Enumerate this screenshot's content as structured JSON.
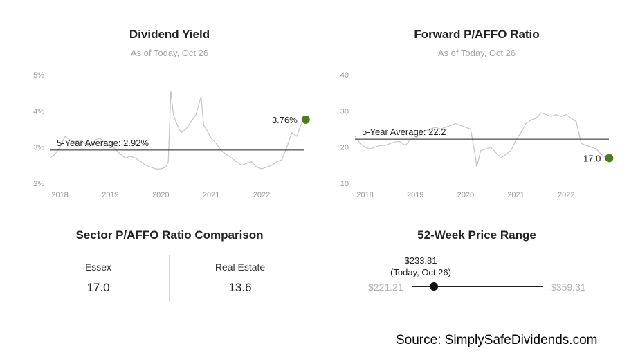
{
  "chart_data": [
    {
      "type": "line",
      "title": "Dividend Yield",
      "subtitle": "As of Today, Oct 26",
      "y_ticks": [
        "5%",
        "4%",
        "3%",
        "2%"
      ],
      "y_tick_values": [
        5,
        4,
        3,
        2
      ],
      "ylim": [
        2,
        5
      ],
      "x_ticks": [
        "2018",
        "2019",
        "2020",
        "2021",
        "2022"
      ],
      "x_tick_values": [
        2018,
        2019,
        2020,
        2021,
        2022
      ],
      "xlim": [
        2017.8,
        2022.85
      ],
      "average": {
        "label": "5-Year Average: 2.92%",
        "value": 2.92
      },
      "latest": {
        "label": "3.76%",
        "value": 3.76
      },
      "series": [
        {
          "x": [
            2017.8,
            2017.9,
            2018.0,
            2018.1,
            2018.2,
            2018.3,
            2018.4,
            2018.5,
            2018.6,
            2018.7,
            2018.8,
            2018.9,
            2019.0,
            2019.1,
            2019.2,
            2019.3,
            2019.4,
            2019.5,
            2019.6,
            2019.7,
            2019.8,
            2019.9,
            2020.0,
            2020.1,
            2020.15,
            2020.2,
            2020.25,
            2020.3,
            2020.4,
            2020.5,
            2020.6,
            2020.7,
            2020.8,
            2020.85,
            2020.9,
            2021.0,
            2021.1,
            2021.2,
            2021.3,
            2021.4,
            2021.5,
            2021.6,
            2021.7,
            2021.8,
            2021.9,
            2022.0,
            2022.1,
            2022.2,
            2022.3,
            2022.4,
            2022.5,
            2022.6,
            2022.7,
            2022.75,
            2022.82
          ],
          "y": [
            2.7,
            2.8,
            3.0,
            3.3,
            3.2,
            3.15,
            3.2,
            3.1,
            3.0,
            3.2,
            3.25,
            3.1,
            3.05,
            2.95,
            2.8,
            2.7,
            2.75,
            2.7,
            2.6,
            2.5,
            2.45,
            2.4,
            2.4,
            2.45,
            2.6,
            4.55,
            3.9,
            3.7,
            3.4,
            3.5,
            3.7,
            3.9,
            4.4,
            3.6,
            3.5,
            3.25,
            3.1,
            2.9,
            2.8,
            2.7,
            2.6,
            2.5,
            2.55,
            2.6,
            2.45,
            2.4,
            2.45,
            2.5,
            2.6,
            2.65,
            3.0,
            3.4,
            3.3,
            3.5,
            3.76
          ]
        }
      ]
    },
    {
      "type": "line",
      "title": "Forward P/AFFO Ratio",
      "subtitle": "As of Today, Oct 26",
      "y_ticks": [
        "40",
        "30",
        "20",
        "10"
      ],
      "y_tick_values": [
        40,
        30,
        20,
        10
      ],
      "ylim": [
        10,
        40
      ],
      "x_ticks": [
        "2018",
        "2019",
        "2020",
        "2021",
        "2022"
      ],
      "x_tick_values": [
        2018,
        2019,
        2020,
        2021,
        2022
      ],
      "xlim": [
        2017.8,
        2022.85
      ],
      "average": {
        "label": "5-Year Average: 22.2",
        "value": 22.2
      },
      "latest": {
        "label": "17.0",
        "value": 17.0
      },
      "series": [
        {
          "x": [
            2017.8,
            2017.9,
            2018.0,
            2018.1,
            2018.2,
            2018.3,
            2018.4,
            2018.5,
            2018.6,
            2018.7,
            2018.8,
            2018.9,
            2019.0,
            2019.1,
            2019.2,
            2019.3,
            2019.4,
            2019.5,
            2019.6,
            2019.7,
            2019.8,
            2019.9,
            2020.0,
            2020.1,
            2020.2,
            2020.22,
            2020.3,
            2020.4,
            2020.5,
            2020.6,
            2020.7,
            2020.8,
            2020.9,
            2021.0,
            2021.1,
            2021.2,
            2021.3,
            2021.4,
            2021.5,
            2021.6,
            2021.7,
            2021.8,
            2021.9,
            2022.0,
            2022.1,
            2022.2,
            2022.3,
            2022.4,
            2022.5,
            2022.6,
            2022.7,
            2022.8
          ],
          "y": [
            23,
            21,
            20,
            19.5,
            20,
            20.5,
            20.5,
            21,
            21.5,
            21.5,
            20.5,
            22,
            22.5,
            23.5,
            24.5,
            25,
            25.5,
            25,
            25.5,
            26,
            26.5,
            26,
            25.5,
            25,
            17,
            14.5,
            19,
            19.5,
            20,
            18.5,
            17,
            18,
            19,
            22,
            24,
            26.5,
            27.5,
            28,
            29.5,
            29,
            28.5,
            29,
            28.5,
            29,
            28,
            27,
            21,
            20.5,
            20,
            19.5,
            18,
            17.0
          ]
        }
      ]
    }
  ],
  "sector": {
    "title": "Sector P/AFFO Ratio Comparison",
    "items": [
      {
        "label": "Essex",
        "value": "17.0"
      },
      {
        "label": "Real Estate",
        "value": "13.6"
      }
    ]
  },
  "price_range": {
    "title": "52-Week Price Range",
    "low_label": "$221.21",
    "high_label": "$359.31",
    "low": 221.21,
    "high": 359.31,
    "current": 233.81,
    "current_label": "$233.81",
    "current_note": "(Today, Oct 26)"
  },
  "source": "Source: SimplySafeDividends.com",
  "colors": {
    "line": "#c4c4c4",
    "marker": "#4f7b1f",
    "average_line": "#222222",
    "axis_text": "#999999",
    "range_muted": "#b3b3b3"
  }
}
